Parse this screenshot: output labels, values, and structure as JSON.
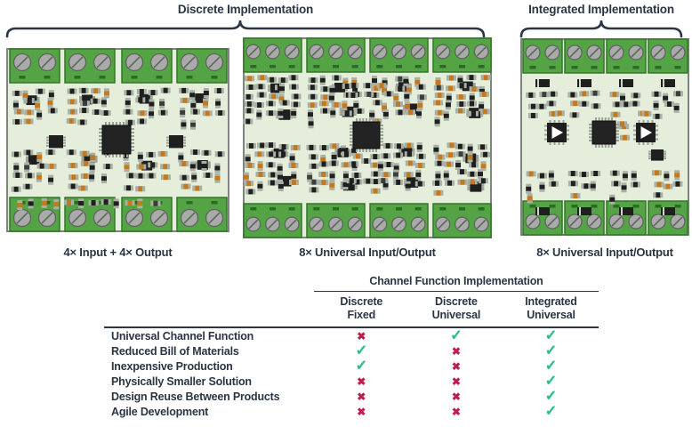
{
  "titles": {
    "discrete": "Discrete Implementation",
    "integrated": "Integrated Implementation"
  },
  "boards": [
    {
      "name": "discrete-fixed",
      "caption": "4× Input + 4× Output"
    },
    {
      "name": "discrete-universal",
      "caption": "8× Universal Input/Output"
    },
    {
      "name": "integrated-universal",
      "caption": "8× Universal Input/Output"
    }
  ],
  "table": {
    "title": "Channel Function Implementation",
    "columns": [
      {
        "l1": "Discrete",
        "l2": "Fixed"
      },
      {
        "l1": "Discrete",
        "l2": "Universal"
      },
      {
        "l1": "Integrated",
        "l2": "Universal"
      }
    ],
    "rows": [
      {
        "label": "Universal Channel Function",
        "values": [
          "cross",
          "check",
          "check"
        ]
      },
      {
        "label": "Reduced Bill of Materials",
        "values": [
          "check",
          "cross",
          "check"
        ]
      },
      {
        "label": "Inexpensive Production",
        "values": [
          "check",
          "cross",
          "check"
        ]
      },
      {
        "label": "Physically Smaller Solution",
        "values": [
          "cross",
          "cross",
          "check"
        ]
      },
      {
        "label": "Design Reuse Between Products",
        "values": [
          "cross",
          "cross",
          "check"
        ]
      },
      {
        "label": "Agile Development",
        "values": [
          "cross",
          "cross",
          "check"
        ]
      }
    ]
  },
  "icons": {
    "check": "✓",
    "cross": "✖"
  },
  "colors": {
    "text": "#2b3544",
    "check": "#2dbd87",
    "cross": "#be1e4b",
    "terminal_green": "#54a345",
    "pcb_bg": "#e5eeda"
  }
}
